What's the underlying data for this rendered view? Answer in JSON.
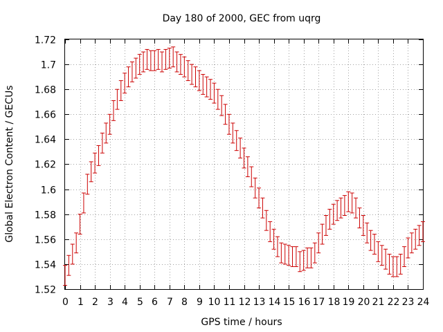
{
  "chart_data": {
    "type": "line",
    "title": "Day 180 of 2000, GEC from uqrg",
    "xlabel": "GPS time / hours",
    "ylabel": "Global Electron Content / GECUs",
    "xlim": [
      0,
      24
    ],
    "ylim": [
      1.52,
      1.72
    ],
    "grid": true,
    "series_color": "#cc0000",
    "xticks": [
      "0",
      "1",
      "2",
      "3",
      "4",
      "5",
      "6",
      "7",
      "8",
      "9",
      "10",
      "11",
      "12",
      "13",
      "14",
      "15",
      "16",
      "17",
      "18",
      "19",
      "20",
      "21",
      "22",
      "23",
      "24"
    ],
    "yticks": [
      "1.52",
      "1.54",
      "1.56",
      "1.58",
      "1.6",
      "1.62",
      "1.64",
      "1.66",
      "1.68",
      "1.7",
      "1.72"
    ],
    "error_half_width": 0.008,
    "series": [
      {
        "name": "GEC",
        "x": [
          0.0,
          0.25,
          0.5,
          0.75,
          1.0,
          1.25,
          1.5,
          1.75,
          2.0,
          2.25,
          2.5,
          2.75,
          3.0,
          3.25,
          3.5,
          3.75,
          4.0,
          4.25,
          4.5,
          4.75,
          5.0,
          5.25,
          5.5,
          5.75,
          6.0,
          6.25,
          6.5,
          6.75,
          7.0,
          7.25,
          7.5,
          7.75,
          8.0,
          8.25,
          8.5,
          8.75,
          9.0,
          9.25,
          9.5,
          9.75,
          10.0,
          10.25,
          10.5,
          10.75,
          11.0,
          11.25,
          11.5,
          11.75,
          12.0,
          12.25,
          12.5,
          12.75,
          13.0,
          13.25,
          13.5,
          13.75,
          14.0,
          14.25,
          14.5,
          14.75,
          15.0,
          15.25,
          15.5,
          15.75,
          16.0,
          16.25,
          16.5,
          16.75,
          17.0,
          17.25,
          17.5,
          17.75,
          18.0,
          18.25,
          18.5,
          18.75,
          19.0,
          19.25,
          19.5,
          19.75,
          20.0,
          20.25,
          20.5,
          20.75,
          21.0,
          21.25,
          21.5,
          21.75,
          22.0,
          22.25,
          22.5,
          22.75,
          23.0,
          23.25,
          23.5,
          23.75,
          24.0
        ],
        "values": [
          1.531,
          1.539,
          1.548,
          1.557,
          1.572,
          1.589,
          1.604,
          1.614,
          1.621,
          1.627,
          1.637,
          1.645,
          1.652,
          1.663,
          1.672,
          1.679,
          1.685,
          1.69,
          1.694,
          1.697,
          1.7,
          1.702,
          1.704,
          1.703,
          1.703,
          1.704,
          1.702,
          1.704,
          1.705,
          1.706,
          1.702,
          1.7,
          1.698,
          1.695,
          1.692,
          1.69,
          1.687,
          1.684,
          1.682,
          1.68,
          1.677,
          1.672,
          1.667,
          1.66,
          1.652,
          1.645,
          1.639,
          1.633,
          1.625,
          1.618,
          1.61,
          1.601,
          1.593,
          1.585,
          1.575,
          1.566,
          1.56,
          1.554,
          1.549,
          1.548,
          1.547,
          1.546,
          1.546,
          1.542,
          1.543,
          1.545,
          1.545,
          1.549,
          1.557,
          1.564,
          1.571,
          1.576,
          1.58,
          1.583,
          1.585,
          1.587,
          1.59,
          1.589,
          1.585,
          1.577,
          1.571,
          1.565,
          1.559,
          1.556,
          1.55,
          1.547,
          1.544,
          1.54,
          1.538,
          1.538,
          1.54,
          1.546,
          1.553,
          1.557,
          1.56,
          1.563,
          1.566
        ]
      }
    ]
  }
}
